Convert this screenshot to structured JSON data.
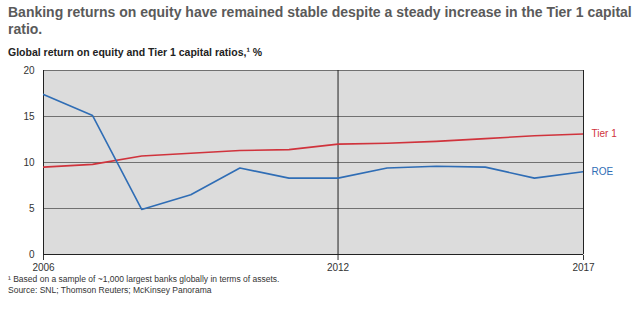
{
  "chart_data": {
    "type": "line",
    "title": "Banking returns on equity have remained stable despite a steady increase in the Tier 1 capital ratio.",
    "subtitle": "Global return on equity and Tier 1 capital ratios,¹ %",
    "notes": [
      "¹ Based on a sample of ~1,000 largest banks globally in terms of assets.",
      "Source: SNL; Thomson Reuters; McKinsey Panorama"
    ],
    "x": [
      2006,
      2007,
      2008,
      2009,
      2010,
      2011,
      2012,
      2013,
      2014,
      2015,
      2016,
      2017
    ],
    "series": [
      {
        "name": "Tier 1",
        "color": "#d0333c",
        "values": [
          9.5,
          9.8,
          10.7,
          11.0,
          11.3,
          11.4,
          12.0,
          12.1,
          12.3,
          12.6,
          12.9,
          13.1
        ]
      },
      {
        "name": "ROE",
        "color": "#2f6db5",
        "values": [
          17.4,
          15.1,
          4.9,
          6.5,
          9.4,
          8.3,
          8.3,
          9.4,
          9.6,
          9.5,
          8.3,
          9.0
        ]
      }
    ],
    "xlim": [
      2006,
      2017
    ],
    "xticks": [
      2006,
      2012,
      2017
    ],
    "ylim": [
      0,
      20
    ],
    "yticks": [
      0,
      5,
      10,
      15,
      20
    ],
    "grid": true
  }
}
